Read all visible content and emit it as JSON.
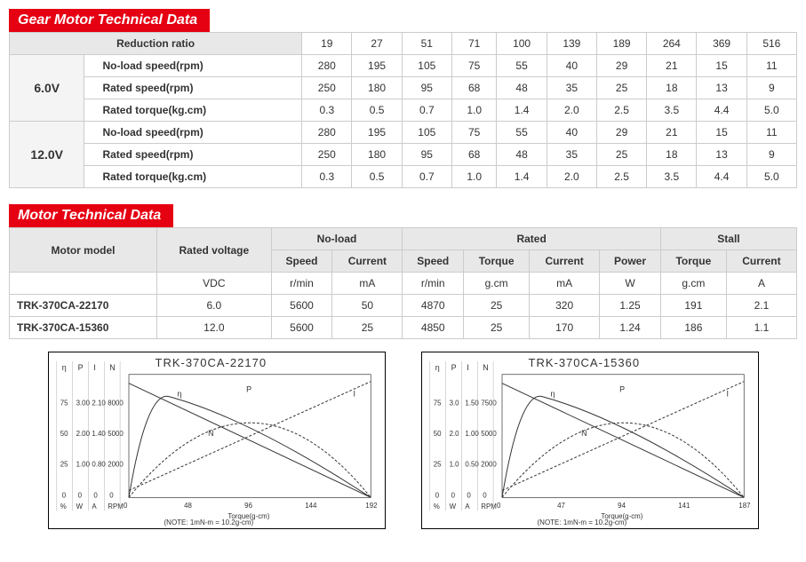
{
  "gear": {
    "title": "Gear Motor Technical Data",
    "ratio_header": "Reduction ratio",
    "ratios": [
      "19",
      "27",
      "51",
      "71",
      "100",
      "139",
      "189",
      "264",
      "369",
      "516"
    ],
    "voltages": [
      {
        "label": "6.0V",
        "rows": [
          {
            "label": "No-load speed(rpm)",
            "vals": [
              "280",
              "195",
              "105",
              "75",
              "55",
              "40",
              "29",
              "21",
              "15",
              "11"
            ]
          },
          {
            "label": "Rated speed(rpm)",
            "vals": [
              "250",
              "180",
              "95",
              "68",
              "48",
              "35",
              "25",
              "18",
              "13",
              "9"
            ]
          },
          {
            "label": "Rated torque(kg.cm)",
            "vals": [
              "0.3",
              "0.5",
              "0.7",
              "1.0",
              "1.4",
              "2.0",
              "2.5",
              "3.5",
              "4.4",
              "5.0"
            ]
          }
        ]
      },
      {
        "label": "12.0V",
        "rows": [
          {
            "label": "No-load speed(rpm)",
            "vals": [
              "280",
              "195",
              "105",
              "75",
              "55",
              "40",
              "29",
              "21",
              "15",
              "11"
            ]
          },
          {
            "label": "Rated speed(rpm)",
            "vals": [
              "250",
              "180",
              "95",
              "68",
              "48",
              "35",
              "25",
              "18",
              "13",
              "9"
            ]
          },
          {
            "label": "Rated torque(kg.cm)",
            "vals": [
              "0.3",
              "0.5",
              "0.7",
              "1.0",
              "1.4",
              "2.0",
              "2.5",
              "3.5",
              "4.4",
              "5.0"
            ]
          }
        ]
      }
    ]
  },
  "motor": {
    "title": "Motor Technical Data",
    "headers": {
      "model": "Motor model",
      "voltage": "Rated voltage",
      "noload": "No-load",
      "rated": "Rated",
      "stall": "Stall",
      "speed": "Speed",
      "current": "Current",
      "torque": "Torque",
      "power": "Power"
    },
    "units": {
      "vdc": "VDC",
      "rmin": "r/min",
      "ma": "mA",
      "gcm": "g.cm",
      "w": "W",
      "a": "A"
    },
    "rows": [
      {
        "model": "TRK-370CA-22170",
        "vdc": "6.0",
        "nl_speed": "5600",
        "nl_cur": "50",
        "r_speed": "4870",
        "r_torque": "25",
        "r_cur": "320",
        "r_pow": "1.25",
        "s_torque": "191",
        "s_cur": "2.1"
      },
      {
        "model": "TRK-370CA-15360",
        "vdc": "12.0",
        "nl_speed": "5600",
        "nl_cur": "25",
        "r_speed": "4850",
        "r_torque": "25",
        "r_cur": "170",
        "r_pow": "1.24",
        "s_torque": "186",
        "s_cur": "1.1"
      }
    ]
  },
  "charts": [
    {
      "title": "TRK-370CA-22170",
      "note": "(NOTE: 1mN-m = 10.2g-cm)",
      "xlabel": "Torque(g-cm)",
      "xticks": [
        "0",
        "48",
        "96",
        "144",
        "192"
      ],
      "left_labels": [
        "η",
        "P",
        "I",
        "N"
      ],
      "y_sets": [
        [
          "25",
          "50",
          "75"
        ],
        [
          "1.00",
          "2.00",
          "3.00"
        ],
        [
          "0.80",
          "1.40",
          "2.10"
        ],
        [
          "2000",
          "5000",
          "8000"
        ]
      ],
      "unit_row": [
        "%",
        "W",
        "A",
        "RPM"
      ]
    },
    {
      "title": "TRK-370CA-15360",
      "note": "(NOTE: 1mN-m = 10.2g-cm)",
      "xlabel": "Torque(g-cm)",
      "xticks": [
        "0",
        "47",
        "94",
        "141",
        "187"
      ],
      "left_labels": [
        "η",
        "P",
        "I",
        "N"
      ],
      "y_sets": [
        [
          "25",
          "50",
          "75"
        ],
        [
          "1.0",
          "2.0",
          "3.0"
        ],
        [
          "0.50",
          "1.00",
          "1.50"
        ],
        [
          "2000",
          "5000",
          "7500"
        ]
      ],
      "unit_row": [
        "%",
        "W",
        "A",
        "RPM"
      ]
    }
  ],
  "colors": {
    "accent": "#e50012",
    "header_bg": "#e8e8e8",
    "border": "#cccccc"
  }
}
